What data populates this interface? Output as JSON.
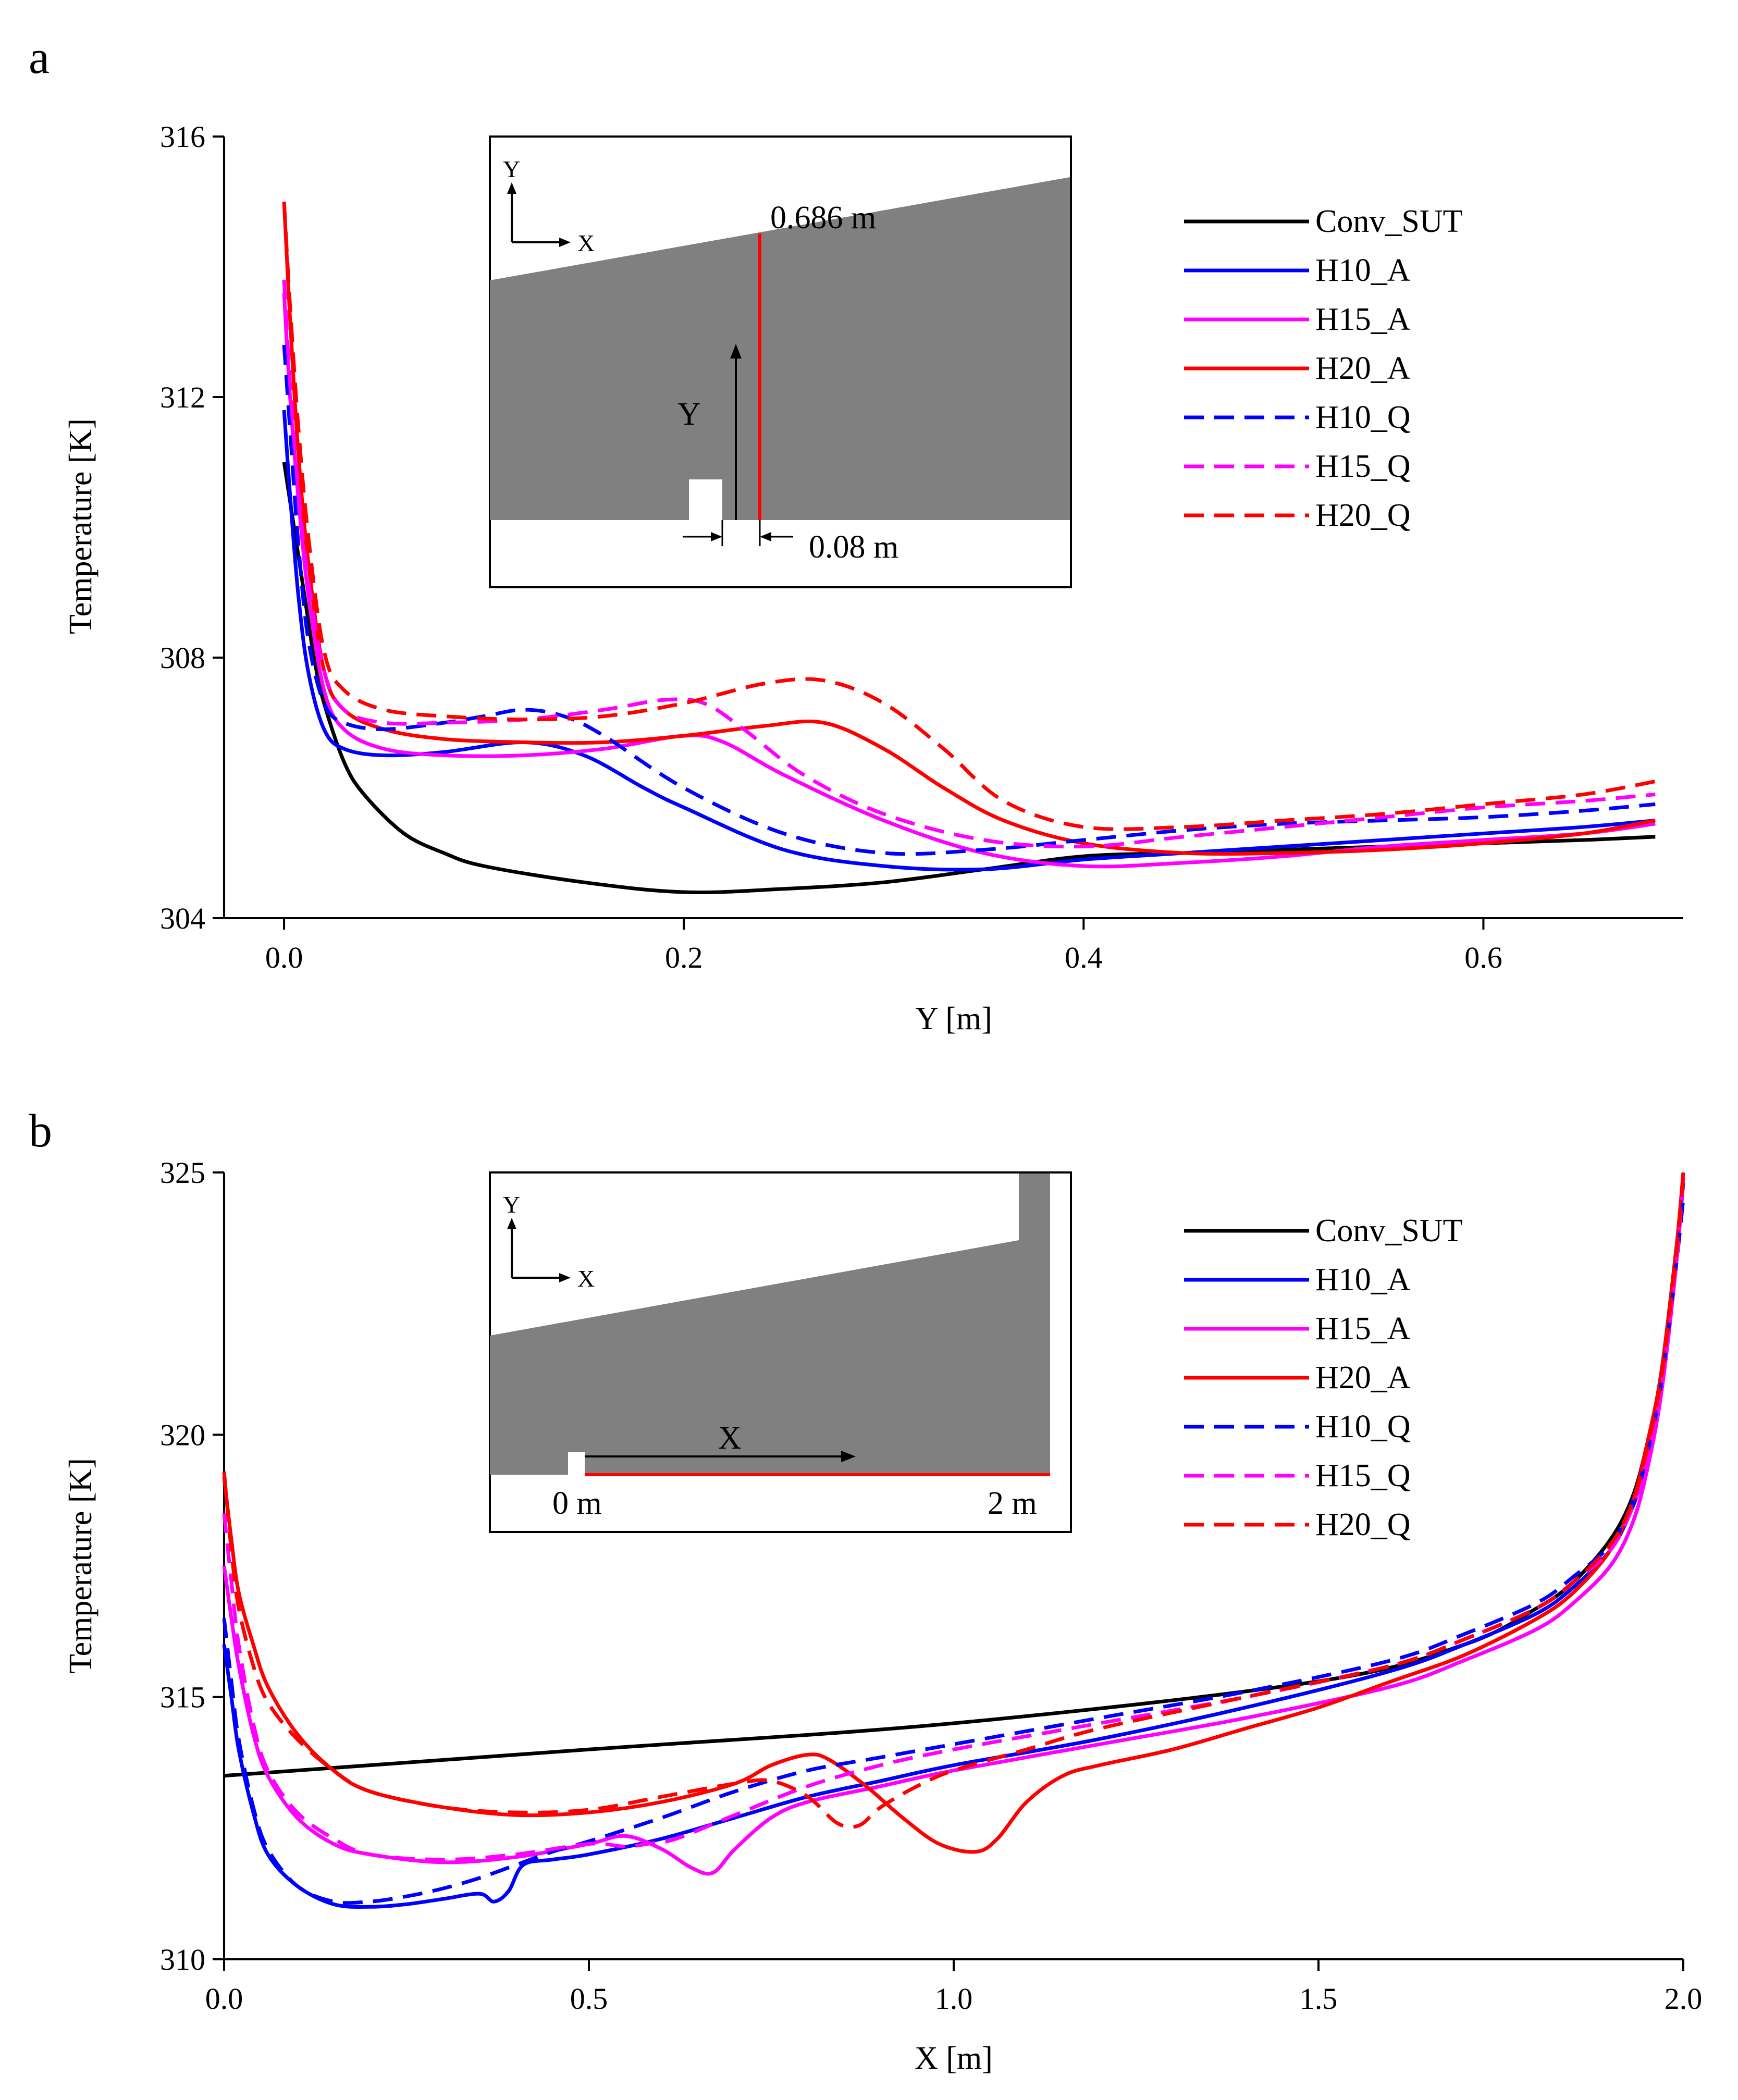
{
  "chart_data": [
    {
      "panel": "a",
      "type": "line",
      "xlabel": "Y [m]",
      "ylabel": "Temperature [K]",
      "xlim": [
        -0.03,
        0.7
      ],
      "ylim": [
        304,
        316
      ],
      "xticks": [
        0.0,
        0.2,
        0.4,
        0.6
      ],
      "xtick_labels": [
        "0.0",
        "0.2",
        "0.4",
        "0.6"
      ],
      "yticks": [
        304,
        308,
        312,
        316
      ],
      "ytick_labels": [
        "304",
        "308",
        "312",
        "316"
      ],
      "grid": false,
      "legend_position": "top-right",
      "inset": {
        "axis_y": "Y",
        "axis_x": "X",
        "label_height": "0.686 m",
        "label_arrow": "Y",
        "label_offset": "0.08 m"
      },
      "series": [
        {
          "name": "Conv_SUT",
          "color": "#000000",
          "dash": "solid",
          "x": [
            0,
            0.005,
            0.01,
            0.015,
            0.02,
            0.03,
            0.04,
            0.06,
            0.08,
            0.1,
            0.15,
            0.2,
            0.25,
            0.3,
            0.35,
            0.4,
            0.45,
            0.5,
            0.55,
            0.6,
            0.65,
            0.686
          ],
          "y": [
            311.0,
            310.0,
            309.0,
            308.0,
            307.3,
            306.4,
            305.9,
            305.3,
            305.0,
            304.8,
            304.55,
            304.4,
            304.45,
            304.55,
            304.75,
            304.95,
            305.0,
            305.05,
            305.1,
            305.15,
            305.2,
            305.25
          ]
        },
        {
          "name": "H10_A",
          "color": "#0000ff",
          "dash": "solid",
          "x": [
            0,
            0.003,
            0.007,
            0.012,
            0.02,
            0.03,
            0.05,
            0.08,
            0.12,
            0.15,
            0.18,
            0.2,
            0.25,
            0.3,
            0.35,
            0.4,
            0.45,
            0.5,
            0.55,
            0.6,
            0.65,
            0.686
          ],
          "y": [
            311.8,
            310.5,
            309.0,
            307.8,
            306.9,
            306.6,
            306.5,
            306.55,
            306.7,
            306.5,
            306.0,
            305.7,
            305.05,
            304.8,
            304.75,
            304.9,
            305.0,
            305.1,
            305.2,
            305.3,
            305.4,
            305.5
          ]
        },
        {
          "name": "H15_A",
          "color": "#ff00ff",
          "dash": "solid",
          "x": [
            0,
            0.003,
            0.007,
            0.012,
            0.02,
            0.03,
            0.05,
            0.08,
            0.12,
            0.16,
            0.2,
            0.22,
            0.25,
            0.3,
            0.35,
            0.4,
            0.45,
            0.5,
            0.55,
            0.6,
            0.65,
            0.686
          ],
          "y": [
            313.6,
            312.0,
            310.5,
            309.0,
            307.5,
            306.9,
            306.6,
            306.5,
            306.5,
            306.6,
            306.8,
            306.7,
            306.2,
            305.5,
            305.0,
            304.8,
            304.85,
            304.95,
            305.1,
            305.2,
            305.3,
            305.45
          ]
        },
        {
          "name": "H20_A",
          "color": "#ff0000",
          "dash": "solid",
          "x": [
            0,
            0.003,
            0.007,
            0.012,
            0.02,
            0.03,
            0.05,
            0.08,
            0.12,
            0.16,
            0.2,
            0.24,
            0.27,
            0.3,
            0.33,
            0.36,
            0.4,
            0.45,
            0.5,
            0.55,
            0.6,
            0.65,
            0.686
          ],
          "y": [
            315.0,
            313.2,
            311.2,
            309.5,
            307.8,
            307.2,
            306.9,
            306.75,
            306.7,
            306.7,
            306.8,
            306.95,
            307.0,
            306.6,
            306.0,
            305.5,
            305.15,
            305.0,
            305.0,
            305.05,
            305.15,
            305.3,
            305.5
          ]
        },
        {
          "name": "H10_Q",
          "color": "#0000ff",
          "dash": "dashed",
          "x": [
            0,
            0.003,
            0.007,
            0.012,
            0.02,
            0.03,
            0.05,
            0.08,
            0.1,
            0.12,
            0.14,
            0.16,
            0.2,
            0.25,
            0.3,
            0.35,
            0.4,
            0.45,
            0.5,
            0.55,
            0.6,
            0.65,
            0.686
          ],
          "y": [
            312.8,
            311.5,
            309.8,
            308.3,
            307.3,
            307.0,
            306.9,
            307.0,
            307.1,
            307.2,
            307.1,
            306.8,
            306.0,
            305.3,
            305.0,
            305.05,
            305.2,
            305.35,
            305.45,
            305.5,
            305.55,
            305.65,
            305.75
          ]
        },
        {
          "name": "H15_Q",
          "color": "#ff00ff",
          "dash": "dashed",
          "x": [
            0,
            0.003,
            0.007,
            0.012,
            0.02,
            0.03,
            0.05,
            0.08,
            0.12,
            0.16,
            0.19,
            0.21,
            0.23,
            0.26,
            0.3,
            0.35,
            0.4,
            0.45,
            0.5,
            0.55,
            0.6,
            0.65,
            0.686
          ],
          "y": [
            313.8,
            312.2,
            310.6,
            309.2,
            307.8,
            307.2,
            307.0,
            307.0,
            307.05,
            307.2,
            307.35,
            307.3,
            306.9,
            306.2,
            305.6,
            305.2,
            305.1,
            305.25,
            305.4,
            305.55,
            305.7,
            305.8,
            305.9
          ]
        },
        {
          "name": "H20_Q",
          "color": "#ff0000",
          "dash": "dashed",
          "x": [
            0,
            0.003,
            0.007,
            0.012,
            0.02,
            0.03,
            0.05,
            0.08,
            0.12,
            0.16,
            0.2,
            0.24,
            0.27,
            0.3,
            0.33,
            0.36,
            0.4,
            0.45,
            0.5,
            0.55,
            0.6,
            0.65,
            0.686
          ],
          "y": [
            315.0,
            313.4,
            311.6,
            309.9,
            308.1,
            307.5,
            307.2,
            307.1,
            307.05,
            307.1,
            307.3,
            307.6,
            307.65,
            307.3,
            306.6,
            305.8,
            305.4,
            305.4,
            305.5,
            305.6,
            305.75,
            305.9,
            306.1
          ]
        }
      ]
    },
    {
      "panel": "b",
      "type": "line",
      "xlabel": "X [m]",
      "ylabel": "Temperature [K]",
      "xlim": [
        0.0,
        2.0
      ],
      "ylim": [
        310,
        325
      ],
      "xticks": [
        0.0,
        0.5,
        1.0,
        1.5,
        2.0
      ],
      "xtick_labels": [
        "0.0",
        "0.5",
        "1.0",
        "1.5",
        "2.0"
      ],
      "yticks": [
        310,
        315,
        320,
        325
      ],
      "ytick_labels": [
        "310",
        "315",
        "320",
        "325"
      ],
      "grid": false,
      "legend_position": "top-right",
      "inset": {
        "axis_y": "Y",
        "axis_x": "X",
        "label_arrow": "X",
        "label_start": "0 m",
        "label_end": "2 m"
      },
      "series": [
        {
          "name": "Conv_SUT",
          "color": "#000000",
          "dash": "solid",
          "x": [
            0.0,
            0.5,
            1.0,
            1.5,
            1.7,
            1.8,
            1.85,
            1.9,
            1.93,
            1.95,
            1.97,
            1.99,
            2.0
          ],
          "y": [
            313.5,
            314.0,
            314.5,
            315.3,
            316.0,
            316.7,
            317.2,
            318.0,
            318.8,
            319.8,
            321.2,
            323.5,
            324.8
          ]
        },
        {
          "name": "H10_A",
          "color": "#0000ff",
          "dash": "solid",
          "x": [
            0.0,
            0.01,
            0.02,
            0.04,
            0.06,
            0.1,
            0.15,
            0.2,
            0.25,
            0.3,
            0.35,
            0.37,
            0.39,
            0.41,
            0.45,
            0.5,
            0.6,
            0.7,
            0.8,
            0.9,
            1.0,
            1.2,
            1.4,
            1.6,
            1.7,
            1.8,
            1.85,
            1.9,
            1.93,
            1.95,
            1.97,
            1.99,
            2.0
          ],
          "y": [
            316.0,
            315.0,
            314.0,
            312.8,
            312.0,
            311.4,
            311.05,
            311.0,
            311.05,
            311.15,
            311.25,
            311.1,
            311.3,
            311.8,
            311.9,
            312.0,
            312.3,
            312.7,
            313.1,
            313.4,
            313.7,
            314.2,
            314.8,
            315.5,
            316.0,
            316.6,
            317.1,
            317.8,
            318.6,
            319.5,
            321.0,
            323.3,
            324.8
          ]
        },
        {
          "name": "H15_A",
          "color": "#ff00ff",
          "dash": "solid",
          "x": [
            0.0,
            0.01,
            0.02,
            0.04,
            0.06,
            0.1,
            0.15,
            0.2,
            0.3,
            0.4,
            0.5,
            0.55,
            0.6,
            0.64,
            0.67,
            0.7,
            0.75,
            0.8,
            0.9,
            1.0,
            1.2,
            1.4,
            1.6,
            1.7,
            1.8,
            1.85,
            1.9,
            1.93,
            1.95,
            1.97,
            1.99,
            2.0
          ],
          "y": [
            317.5,
            316.5,
            315.6,
            314.3,
            313.5,
            312.7,
            312.2,
            312.0,
            311.85,
            311.95,
            312.2,
            312.35,
            312.1,
            311.75,
            311.65,
            312.1,
            312.7,
            313.0,
            313.3,
            313.6,
            314.1,
            314.6,
            315.2,
            315.7,
            316.3,
            316.8,
            317.5,
            318.3,
            319.3,
            320.8,
            323.2,
            324.9
          ]
        },
        {
          "name": "H20_A",
          "color": "#ff0000",
          "dash": "solid",
          "x": [
            0.0,
            0.01,
            0.02,
            0.04,
            0.06,
            0.1,
            0.15,
            0.2,
            0.3,
            0.4,
            0.5,
            0.6,
            0.7,
            0.75,
            0.8,
            0.83,
            0.88,
            0.93,
            0.98,
            1.03,
            1.06,
            1.1,
            1.15,
            1.2,
            1.3,
            1.4,
            1.5,
            1.6,
            1.7,
            1.8,
            1.85,
            1.9,
            1.93,
            1.95,
            1.97,
            1.99,
            2.0
          ],
          "y": [
            319.2,
            318.0,
            317.0,
            316.0,
            315.2,
            314.3,
            313.6,
            313.2,
            312.9,
            312.75,
            312.8,
            313.0,
            313.35,
            313.7,
            313.9,
            313.8,
            313.3,
            312.7,
            312.2,
            312.05,
            312.3,
            313.0,
            313.5,
            313.7,
            314.0,
            314.4,
            314.8,
            315.3,
            315.8,
            316.5,
            317.0,
            317.8,
            318.7,
            319.8,
            321.2,
            323.5,
            325.0
          ]
        },
        {
          "name": "H10_Q",
          "color": "#0000ff",
          "dash": "dashed",
          "x": [
            0.0,
            0.01,
            0.02,
            0.04,
            0.06,
            0.1,
            0.15,
            0.2,
            0.25,
            0.3,
            0.35,
            0.4,
            0.45,
            0.5,
            0.6,
            0.7,
            0.8,
            0.9,
            1.0,
            1.2,
            1.4,
            1.6,
            1.7,
            1.8,
            1.85,
            1.9,
            1.93,
            1.95,
            1.97,
            1.99,
            2.0
          ],
          "y": [
            316.5,
            315.3,
            314.2,
            312.9,
            312.1,
            311.4,
            311.1,
            311.1,
            311.2,
            311.35,
            311.55,
            311.8,
            312.05,
            312.25,
            312.7,
            313.2,
            313.6,
            313.85,
            314.1,
            314.6,
            315.1,
            315.7,
            316.2,
            316.8,
            317.3,
            317.9,
            318.7,
            319.6,
            321.0,
            323.2,
            324.5
          ]
        },
        {
          "name": "H15_Q",
          "color": "#ff00ff",
          "dash": "dashed",
          "x": [
            0.0,
            0.01,
            0.02,
            0.04,
            0.06,
            0.1,
            0.15,
            0.2,
            0.3,
            0.4,
            0.5,
            0.55,
            0.58,
            0.62,
            0.7,
            0.8,
            0.9,
            1.0,
            1.2,
            1.4,
            1.6,
            1.7,
            1.8,
            1.85,
            1.9,
            1.93,
            1.95,
            1.97,
            1.99,
            2.0
          ],
          "y": [
            318.5,
            317.2,
            316.0,
            314.5,
            313.6,
            312.8,
            312.3,
            312.0,
            311.9,
            312.0,
            312.2,
            312.15,
            312.2,
            312.3,
            312.75,
            313.3,
            313.7,
            314.0,
            314.5,
            315.0,
            315.6,
            316.1,
            316.7,
            317.2,
            317.8,
            318.6,
            319.5,
            320.9,
            323.2,
            324.9
          ]
        },
        {
          "name": "H20_Q",
          "color": "#ff0000",
          "dash": "dashed",
          "x": [
            0.0,
            0.01,
            0.02,
            0.04,
            0.06,
            0.1,
            0.15,
            0.2,
            0.3,
            0.4,
            0.5,
            0.6,
            0.7,
            0.75,
            0.8,
            0.84,
            0.87,
            0.9,
            0.95,
            1.0,
            1.1,
            1.2,
            1.4,
            1.6,
            1.7,
            1.8,
            1.85,
            1.9,
            1.93,
            1.95,
            1.97,
            1.99,
            2.0
          ],
          "y": [
            319.3,
            317.8,
            316.7,
            315.6,
            314.9,
            314.2,
            313.6,
            313.2,
            312.9,
            312.8,
            312.85,
            313.1,
            313.35,
            313.4,
            313.1,
            312.6,
            312.55,
            312.9,
            313.3,
            313.6,
            314.0,
            314.4,
            315.0,
            315.6,
            316.1,
            316.7,
            317.2,
            317.9,
            318.7,
            319.7,
            321.1,
            323.4,
            325.0
          ]
        }
      ]
    }
  ]
}
